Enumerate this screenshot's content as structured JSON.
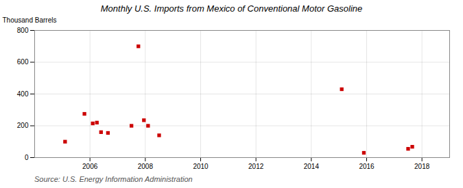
{
  "chart_data": {
    "type": "scatter",
    "title": "Monthly U.S. Imports from Mexico of Conventional Motor Gasoline",
    "ylabel": "Thousand Barrels",
    "caption": "Source: U.S. Energy Information Administration",
    "x": [
      2005.1,
      2005.8,
      2006.1,
      2006.25,
      2006.4,
      2006.65,
      2007.5,
      2007.75,
      2007.95,
      2008.1,
      2008.5,
      2015.1,
      2015.9,
      2017.5,
      2017.65
    ],
    "values": [
      100,
      275,
      215,
      220,
      160,
      155,
      200,
      700,
      235,
      200,
      140,
      430,
      30,
      55,
      68
    ],
    "color": "#cc0000",
    "marker": "square",
    "xlim": [
      2004.0,
      2019.0
    ],
    "xticks": [
      2006,
      2008,
      2010,
      2012,
      2014,
      2016,
      2018
    ],
    "ylim": [
      0,
      800
    ],
    "yticks": [
      0,
      200,
      400,
      600,
      800
    ],
    "grid": true
  }
}
